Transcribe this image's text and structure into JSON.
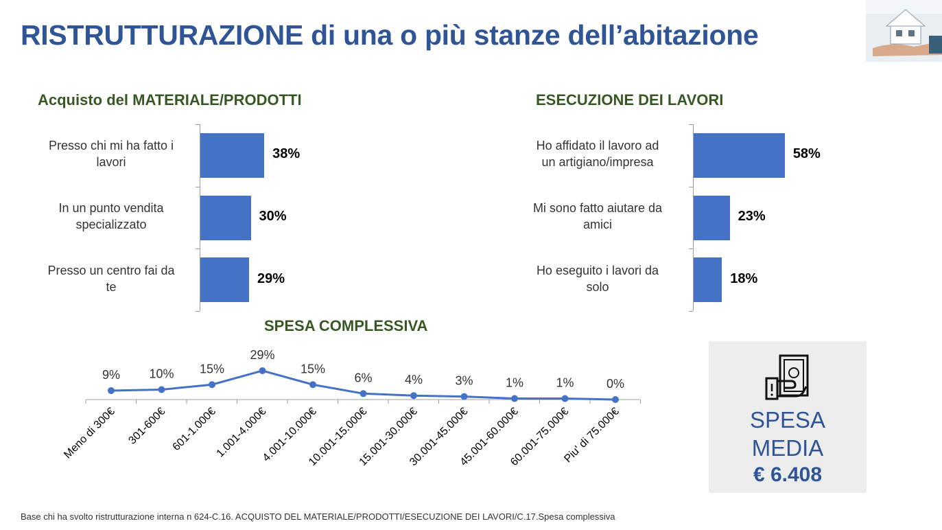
{
  "title": "RISTRUTTURAZIONE di una o più stanze dell’abitazione",
  "chart_data": [
    {
      "type": "bar",
      "title": "Acquisto del MATERIALE/PRODOTTI",
      "categories": [
        "Presso chi mi ha fatto i lavori",
        "In un punto vendita specializzato",
        "Presso un centro fai da te"
      ],
      "category_lines": [
        [
          "Presso chi mi ha fatto i",
          "lavori"
        ],
        [
          "In un punto vendita",
          "specializzato"
        ],
        [
          "Presso un centro fai da",
          "te"
        ]
      ],
      "values": [
        38,
        30,
        29
      ],
      "value_labels": [
        "38%",
        "30%",
        "29%"
      ],
      "orientation": "horizontal",
      "color": "#4472C4"
    },
    {
      "type": "bar",
      "title": "ESECUZIONE DEI LAVORI",
      "categories": [
        "Ho affidato il lavoro ad un artigiano/impresa",
        "Mi sono fatto aiutare da amici",
        "Ho eseguito i lavori  da solo"
      ],
      "category_lines": [
        [
          "Ho affidato il lavoro ad",
          "un artigiano/impresa"
        ],
        [
          "Mi sono fatto aiutare da",
          "amici"
        ],
        [
          "Ho eseguito i lavori  da",
          "solo"
        ]
      ],
      "values": [
        58,
        23,
        18
      ],
      "value_labels": [
        "58%",
        "23%",
        "18%"
      ],
      "orientation": "horizontal",
      "color": "#4472C4"
    },
    {
      "type": "line",
      "title": "SPESA COMPLESSIVA",
      "categories": [
        "Meno di 300€",
        "301-600€",
        "601-1.000€",
        "1.001-4.000€",
        "4.001-10.000€",
        "10.001-15.000€",
        "15.001-30.000€",
        "30.001-45.000€",
        "45.001-60.000€",
        "60.001-75.000€",
        "Piu' di 75.000€"
      ],
      "values": [
        9,
        10,
        15,
        29,
        15,
        6,
        4,
        3,
        1,
        1,
        0
      ],
      "value_labels": [
        "9%",
        "10%",
        "15%",
        "29%",
        "15%",
        "6%",
        "4%",
        "3%",
        "1%",
        "1%",
        "0%"
      ],
      "color": "#4472C4"
    }
  ],
  "summary_box": {
    "icon": "money-hand-icon",
    "label_line1": "SPESA",
    "label_line2": "MEDIA",
    "value": "€ 6.408"
  },
  "footnote": "Base chi ha svolto ristrutturazione interna n 624-C.16. ACQUISTO DEL MATERIALE/PRODOTTI/ESECUZIONE DEI LAVORI/C.17.Spesa complessiva",
  "colors": {
    "title": "#2F5597",
    "section_title": "#385723",
    "bar": "#4472C4",
    "box_bg": "#EDEDED"
  }
}
